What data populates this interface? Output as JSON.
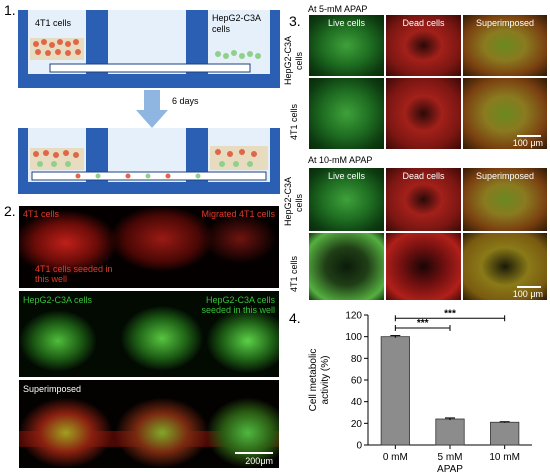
{
  "panels": {
    "p1": {
      "number": "1.",
      "label_left": "4T1 cells",
      "label_right": "HepG2-C3A cells",
      "arrow_label": "6 days"
    },
    "p2": {
      "number": "2.",
      "row1_left": "4T1 cells",
      "row1_right": "Migrated 4T1 cells",
      "row1_seeded": "4T1 cells seeded in this well",
      "row2_left": "HepG2-C3A cells",
      "row2_right": "HepG2-C3A cells seeded in this well",
      "row3_left": "Superimposed",
      "scale": "200μm"
    },
    "p3": {
      "number": "3.",
      "title_a": "At 5-mM APAP",
      "title_b": "At 10-mM APAP",
      "col_live": "Live cells",
      "col_dead": "Dead cells",
      "col_super": "Superimposed",
      "row_hep": "HepG2-C3A cells",
      "row_4t1": "4T1 cells",
      "scale": "100 μm"
    },
    "p4": {
      "number": "4."
    }
  },
  "chart_data": {
    "type": "bar",
    "categories": [
      "0 mM",
      "5 mM",
      "10 mM"
    ],
    "values": [
      100,
      24,
      21
    ],
    "errors": [
      1,
      1,
      0.5
    ],
    "xlabel": "APAP",
    "ylabel": "Cell metabolic activity (%)",
    "ylim": [
      0,
      120
    ],
    "yticks": [
      0,
      20,
      40,
      60,
      80,
      100,
      120
    ],
    "significance": [
      {
        "from": "0 mM",
        "to": "5 mM",
        "label": "***"
      },
      {
        "from": "0 mM",
        "to": "10 mM",
        "label": "***"
      }
    ],
    "bar_color": "#8c8c8c"
  }
}
